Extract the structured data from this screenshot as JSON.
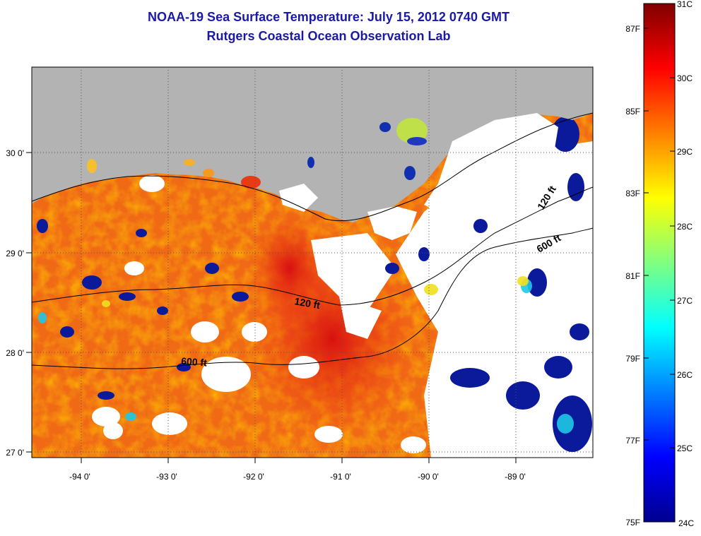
{
  "header": {
    "title": "NOAA-19 Sea Surface Temperature:  July 15, 2012 0740 GMT",
    "subtitle": "Rutgers Coastal Ocean Observation Lab"
  },
  "map": {
    "lon_labels": [
      "-94 0'",
      "-93 0'",
      "-92 0'",
      "-91 0'",
      "-90 0'",
      "-89 0'"
    ],
    "lat_labels": [
      "30 0'",
      "29 0'",
      "28 0'",
      "27 0'"
    ],
    "lon_range": [
      -94.55,
      -88.1
    ],
    "lat_range": [
      26.95,
      30.85
    ],
    "land_color": "#b3b3b3",
    "cloud_color": "#ffffff",
    "contours": [
      {
        "label": "120 ft"
      },
      {
        "label": "600 ft"
      },
      {
        "label": "120 ft"
      },
      {
        "label": "600 ft"
      }
    ]
  },
  "colorbar": {
    "celsius_labels": [
      "31C",
      "30C",
      "29C",
      "28C",
      "27C",
      "26C",
      "25C",
      "24C"
    ],
    "fahrenheit_labels": [
      "87F",
      "85F",
      "83F",
      "81F",
      "79F",
      "77F",
      "75F"
    ],
    "colormap": "jet",
    "range_c": [
      24,
      31
    ]
  }
}
